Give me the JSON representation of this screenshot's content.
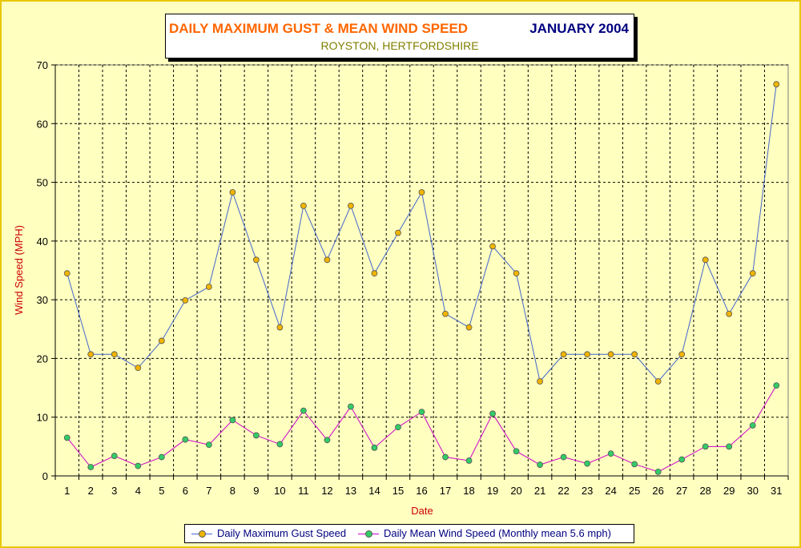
{
  "title": {
    "main": "DAILY MAXIMUM GUST & MEAN WIND SPEED",
    "month": "JANUARY 2004",
    "location": "ROYSTON, HERTFORDSHIRE"
  },
  "colors": {
    "background": "#ffffc0",
    "gust_line": "#4466cc",
    "mean_line": "#cc00cc",
    "gust_marker": "#f0b400",
    "mean_marker": "#33cc66",
    "axis_label": "#cc0000",
    "title_orange": "#ff6600",
    "title_navy": "#000080",
    "subtitle": "#808000"
  },
  "legend": {
    "gust": "Daily Maximum Gust Speed",
    "mean": "Daily Mean Wind Speed (Monthly mean 5.6 mph)"
  },
  "chart_data": {
    "type": "line",
    "xlabel": "Date",
    "ylabel": "Wind Speed (MPH)",
    "ylim": [
      0,
      70
    ],
    "yticks": [
      0,
      10,
      20,
      30,
      40,
      50,
      60,
      70
    ],
    "grid": true,
    "legend_position": "bottom",
    "categories": [
      "1",
      "2",
      "3",
      "4",
      "5",
      "6",
      "7",
      "8",
      "9",
      "10",
      "11",
      "12",
      "13",
      "14",
      "15",
      "16",
      "17",
      "18",
      "19",
      "20",
      "21",
      "22",
      "23",
      "24",
      "25",
      "26",
      "27",
      "28",
      "29",
      "30",
      "31"
    ],
    "series": [
      {
        "name": "Daily Maximum Gust Speed",
        "values": [
          34.5,
          20.7,
          20.7,
          18.4,
          23.0,
          29.9,
          32.2,
          48.3,
          36.8,
          25.3,
          46.0,
          36.8,
          46.0,
          34.5,
          41.4,
          48.3,
          27.6,
          25.3,
          39.1,
          34.5,
          16.1,
          20.7,
          20.7,
          20.7,
          20.7,
          16.1,
          20.7,
          36.8,
          27.6,
          34.5,
          66.7
        ]
      },
      {
        "name": "Daily Mean Wind Speed (Monthly mean 5.6 mph)",
        "values": [
          6.5,
          1.5,
          3.4,
          1.7,
          3.2,
          6.2,
          5.3,
          9.5,
          6.9,
          5.4,
          11.1,
          6.1,
          11.8,
          4.8,
          8.3,
          10.9,
          3.2,
          2.6,
          10.6,
          4.2,
          1.9,
          3.2,
          2.1,
          3.8,
          2.0,
          0.7,
          2.8,
          5.0,
          5.0,
          8.6,
          15.4
        ]
      }
    ]
  }
}
